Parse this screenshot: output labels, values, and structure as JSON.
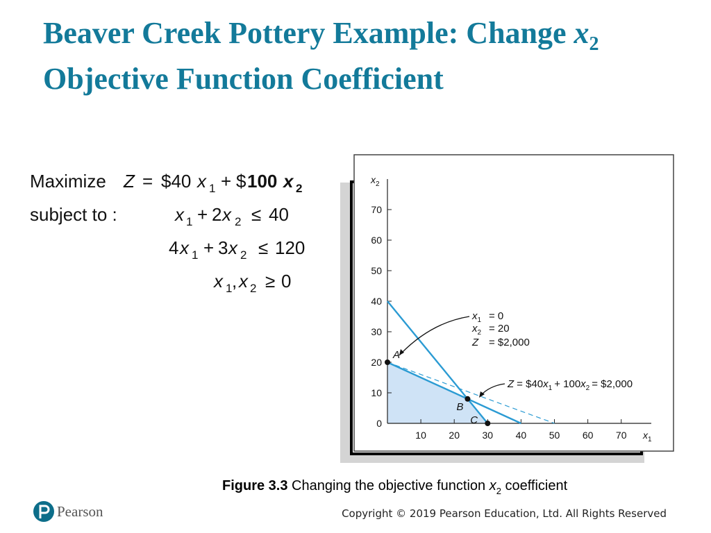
{
  "title": {
    "line1": "Beaver Creek Pottery Example: Change",
    "var": "x",
    "sub": "2",
    "line2": "Objective Function Coefficient"
  },
  "formulas": {
    "objective": [
      "Maximize",
      "Z",
      "=",
      "$40",
      "x",
      "1",
      "+",
      "$",
      "100",
      "x",
      "2"
    ],
    "constraint1": [
      "subject to :",
      "x",
      "1",
      "+",
      "2",
      "x",
      "2",
      "≤",
      "40"
    ],
    "constraint2": [
      "4",
      "x",
      "1",
      "+",
      "3",
      "x",
      "2",
      "≤",
      "120"
    ],
    "constraint3": [
      "x",
      "1",
      ",",
      "x",
      "2",
      "≥",
      "0"
    ]
  },
  "chart_data": {
    "type": "line",
    "x_label": [
      "x",
      "1"
    ],
    "y_label": [
      "x",
      "2"
    ],
    "xlim": [
      0,
      79
    ],
    "ylim": [
      0,
      80
    ],
    "xticks": [
      10,
      20,
      30,
      40,
      50,
      60,
      70
    ],
    "yticks": [
      0,
      10,
      20,
      30,
      40,
      50,
      60,
      70
    ],
    "series": [
      {
        "color": "#2b9bd3",
        "style": "solid",
        "x": [
          0,
          40
        ],
        "values": [
          20,
          0
        ]
      },
      {
        "color": "#2b9bd3",
        "style": "solid",
        "x": [
          0,
          30
        ],
        "values": [
          40,
          0
        ]
      },
      {
        "color": "#2b9bd3",
        "style": "dashed",
        "x": [
          0,
          50
        ],
        "values": [
          20,
          0
        ]
      }
    ],
    "feasible_region": {
      "color": "#cfe3f6",
      "x": [
        0,
        0,
        24,
        30
      ],
      "values": [
        0,
        20,
        8,
        0
      ]
    },
    "points": {
      "labels": [
        "A",
        "B",
        "C"
      ],
      "x": [
        0,
        24,
        30
      ],
      "values": [
        20,
        8,
        0
      ]
    },
    "annotations": {
      "point_a": [
        [
          "x",
          "1",
          "= 0"
        ],
        [
          "x",
          "2",
          "= 20"
        ],
        [
          "Z",
          "= $2,000"
        ]
      ],
      "objective_line": [
        "Z",
        "= $40",
        "x",
        "1",
        "+ 100",
        "x",
        "2",
        "= $2,000"
      ]
    }
  },
  "caption": [
    "Figure 3.3",
    "Changing the objective function ",
    "x",
    "2",
    " coefficient"
  ],
  "footer": {
    "brand": "Pearson",
    "copyright": "Copyright © 2019 Pearson Education, Ltd. All Rights Reserved"
  }
}
